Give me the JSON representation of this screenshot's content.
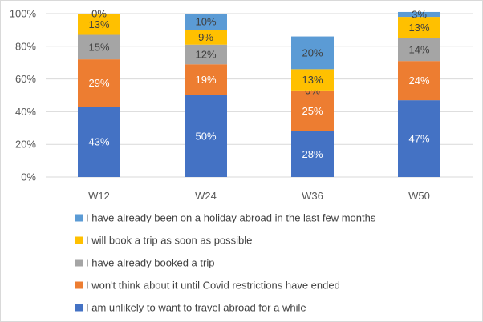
{
  "chart_data": {
    "type": "bar",
    "stacked": true,
    "categories": [
      "W12",
      "W24",
      "W36",
      "W50"
    ],
    "ylim": [
      0,
      100
    ],
    "yticks": [
      "0%",
      "20%",
      "40%",
      "60%",
      "80%",
      "100%"
    ],
    "grid": true,
    "legend_position": "bottom",
    "series": [
      {
        "name": "I am unlikely to want to travel abroad for a while",
        "color": "#4472C4",
        "values": [
          43,
          50,
          28,
          47
        ],
        "labels": [
          "43%",
          "50%",
          "28%",
          "47%"
        ],
        "label_color": "#ffffff"
      },
      {
        "name": "I won't think about it until Covid restrictions have ended",
        "color": "#ED7D31",
        "values": [
          29,
          19,
          25,
          24
        ],
        "labels": [
          "29%",
          "19%",
          "25%",
          "24%"
        ],
        "label_color": "#ffffff"
      },
      {
        "name": "I have already booked a trip",
        "color": "#A5A5A5",
        "values": [
          15,
          12,
          0,
          14
        ],
        "labels": [
          "15%",
          "12%",
          "0%",
          "14%"
        ],
        "label_color": "#404040"
      },
      {
        "name": "I will book a trip as soon as possible",
        "color": "#FFC000",
        "values": [
          13,
          9,
          13,
          13
        ],
        "labels": [
          "13%",
          "9%",
          "13%",
          "13%"
        ],
        "label_color": "#404040"
      },
      {
        "name": "I have already been on a holiday abroad in the last few months",
        "color": "#5B9BD5",
        "values": [
          0,
          10,
          20,
          3
        ],
        "labels": [
          "0%",
          "10%",
          "20%",
          "3%"
        ],
        "label_color": "#404040"
      }
    ]
  }
}
